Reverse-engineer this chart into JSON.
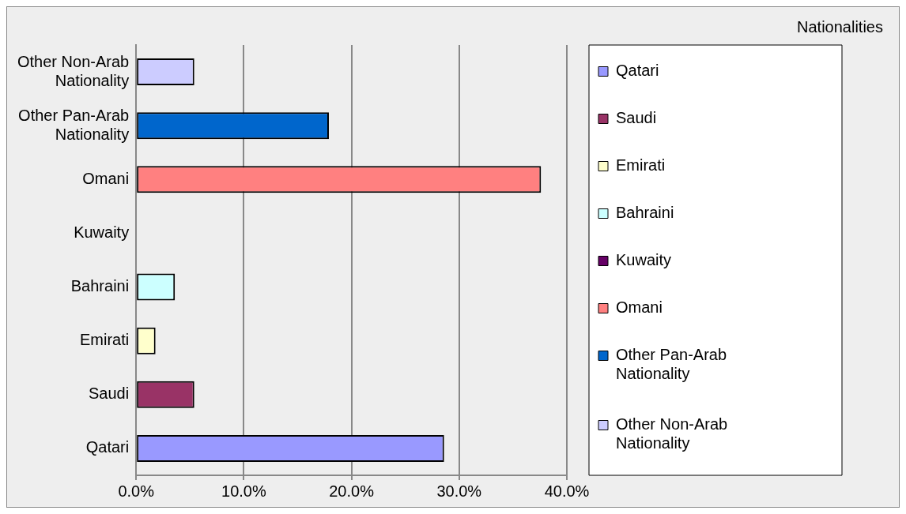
{
  "chart_data": {
    "type": "bar",
    "orientation": "horizontal",
    "stacked": true,
    "title": "Nationalities",
    "categories": [
      "Other Non-Arab Nationality",
      "Other Pan-Arab Nationality",
      "Omani",
      "Kuwaity",
      "Bahraini",
      "Emirati",
      "Saudi",
      "Qatari"
    ],
    "series": [
      {
        "name": "Qatari",
        "color": "#9999ff",
        "values": [
          null,
          null,
          null,
          null,
          null,
          null,
          null,
          28.6
        ]
      },
      {
        "name": "Saudi",
        "color": "#993366",
        "values": [
          null,
          null,
          null,
          null,
          null,
          null,
          5.4,
          null
        ]
      },
      {
        "name": "Emirati",
        "color": "#ffffcc",
        "values": [
          null,
          null,
          null,
          null,
          null,
          1.8,
          null,
          null
        ]
      },
      {
        "name": "Bahraini",
        "color": "#ccffff",
        "values": [
          null,
          null,
          null,
          null,
          3.6,
          null,
          null,
          null
        ]
      },
      {
        "name": "Kuwaity",
        "color": "#660066",
        "values": [
          null,
          null,
          null,
          0,
          null,
          null,
          null,
          null
        ]
      },
      {
        "name": "Omani",
        "color": "#ff8080",
        "values": [
          null,
          null,
          37.6,
          null,
          null,
          null,
          null,
          null
        ]
      },
      {
        "name": "Other Pan-Arab Nationality",
        "color": "#0066cc",
        "values": [
          null,
          17.9,
          null,
          null,
          null,
          null,
          null,
          null
        ]
      },
      {
        "name": "Other Non-Arab Nationality",
        "color": "#ccccff",
        "values": [
          5.4,
          null,
          null,
          null,
          null,
          null,
          null,
          null
        ]
      }
    ],
    "xlim": [
      0,
      40
    ],
    "xticks": [
      {
        "value": 0,
        "label": "0.0%"
      },
      {
        "value": 10,
        "label": "10.0%"
      },
      {
        "value": 20,
        "label": "20.0%"
      },
      {
        "value": 30,
        "label": "30.0%"
      },
      {
        "value": 40,
        "label": "40.0%"
      }
    ],
    "grid": "x",
    "legend": "right"
  }
}
